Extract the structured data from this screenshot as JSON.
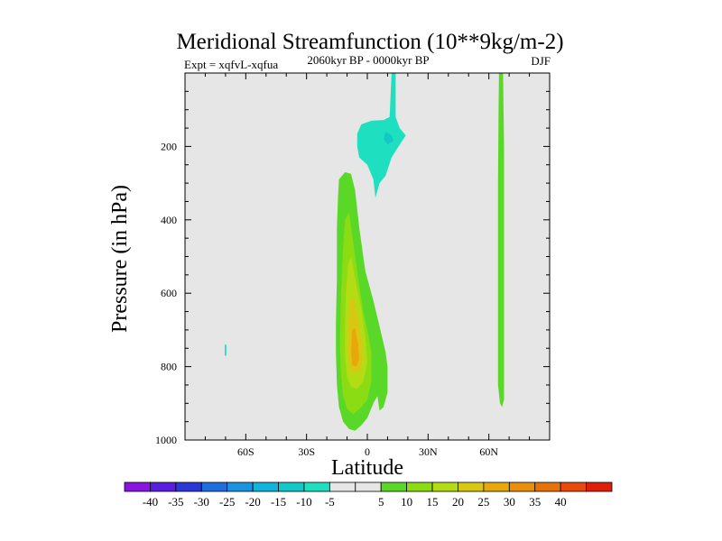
{
  "chart_data": {
    "type": "contour",
    "title": "Meridional Streamfunction (10**9kg/m-2)",
    "subtitle": "2060kyr BP - 0000kyr BP",
    "left_label": "Expt = xqfvL-xqfua",
    "right_label": "DJF",
    "xlabel": "Latitude",
    "ylabel": "Pressure (in hPa)",
    "xlim": [
      -90,
      90
    ],
    "ylim": [
      0,
      1000
    ],
    "y_inverted": true,
    "x_ticks": [
      {
        "value": -60,
        "label": "60S"
      },
      {
        "value": -30,
        "label": "30S"
      },
      {
        "value": 0,
        "label": "0"
      },
      {
        "value": 30,
        "label": "30N"
      },
      {
        "value": 60,
        "label": "60N"
      }
    ],
    "y_ticks": [
      {
        "value": 200,
        "label": "200"
      },
      {
        "value": 400,
        "label": "400"
      },
      {
        "value": 600,
        "label": "600"
      },
      {
        "value": 800,
        "label": "800"
      },
      {
        "value": 1000,
        "label": "1000"
      }
    ],
    "background_color": "#e6e6e6",
    "contour_levels": [
      -45,
      -40,
      -35,
      -30,
      -25,
      -20,
      -15,
      -10,
      -5,
      5,
      10,
      15,
      20,
      25,
      30,
      35,
      40,
      45
    ],
    "colorbar": {
      "colors": [
        "#8a14e0",
        "#5a1ee0",
        "#2a38d8",
        "#1e6ee0",
        "#1a94e0",
        "#10b4dc",
        "#14c8c8",
        "#1ee0c0",
        "#e6e6e6",
        "#e6e6e6",
        "#5ad828",
        "#8cdc14",
        "#b4dc14",
        "#d8c814",
        "#e8a80a",
        "#e8900a",
        "#e8720a",
        "#e84a0a",
        "#e01e0a"
      ],
      "labels": [
        "-40",
        "-35",
        "-30",
        "-25",
        "-20",
        "-15",
        "-10",
        "-5",
        "5",
        "10",
        "15",
        "20",
        "25",
        "30",
        "35",
        "40"
      ]
    },
    "regions": [
      {
        "name": "upper-cyan-cell",
        "level": "-10 to -5",
        "color": "#1ee0c0",
        "polygon": [
          [
            -3,
            140
          ],
          [
            2,
            130
          ],
          [
            8,
            128
          ],
          [
            11,
            120
          ],
          [
            12,
            0
          ],
          [
            14,
            0
          ],
          [
            14,
            120
          ],
          [
            16,
            150
          ],
          [
            19,
            170
          ],
          [
            16,
            195
          ],
          [
            12,
            230
          ],
          [
            9,
            280
          ],
          [
            6,
            300
          ],
          [
            4,
            340
          ],
          [
            3,
            290
          ],
          [
            0,
            250
          ],
          [
            -4,
            230
          ],
          [
            -5,
            200
          ],
          [
            -5,
            165
          ]
        ]
      },
      {
        "name": "upper-cyan-core",
        "level": "-15 to -10",
        "color": "#14c8c8",
        "polygon": [
          [
            9,
            160
          ],
          [
            12,
            170
          ],
          [
            13,
            185
          ],
          [
            10,
            195
          ],
          [
            8,
            180
          ]
        ]
      },
      {
        "name": "tropical-outer-cell",
        "level": "5 to 10",
        "color": "#5ad828",
        "polygon": [
          [
            -14,
            290
          ],
          [
            -11,
            270
          ],
          [
            -8,
            275
          ],
          [
            -6,
            320
          ],
          [
            -4,
            420
          ],
          [
            -1,
            540
          ],
          [
            3,
            620
          ],
          [
            6,
            690
          ],
          [
            9,
            760
          ],
          [
            10,
            800
          ],
          [
            10,
            870
          ],
          [
            8,
            910
          ],
          [
            6,
            920
          ],
          [
            5,
            880
          ],
          [
            3,
            900
          ],
          [
            0,
            940
          ],
          [
            -3,
            960
          ],
          [
            -6,
            975
          ],
          [
            -9,
            970
          ],
          [
            -12,
            950
          ],
          [
            -14,
            910
          ],
          [
            -15,
            850
          ],
          [
            -15.5,
            760
          ],
          [
            -15.5,
            680
          ],
          [
            -15,
            560
          ],
          [
            -15,
            420
          ],
          [
            -14.5,
            340
          ]
        ]
      },
      {
        "name": "tropical-mid-cell",
        "level": "10 to 15",
        "color": "#8cdc14",
        "polygon": [
          [
            -11,
            400
          ],
          [
            -9,
            380
          ],
          [
            -8,
            420
          ],
          [
            -6,
            500
          ],
          [
            -4,
            580
          ],
          [
            -2,
            650
          ],
          [
            0,
            700
          ],
          [
            2,
            760
          ],
          [
            2,
            840
          ],
          [
            0,
            890
          ],
          [
            -3,
            910
          ],
          [
            -7,
            930
          ],
          [
            -10,
            915
          ],
          [
            -12,
            880
          ],
          [
            -13,
            820
          ],
          [
            -13.5,
            740
          ],
          [
            -13,
            600
          ],
          [
            -12,
            480
          ]
        ]
      },
      {
        "name": "tropical-inner-cell",
        "level": "15 to 20",
        "color": "#b4dc14",
        "polygon": [
          [
            -9.5,
            520
          ],
          [
            -8,
            500
          ],
          [
            -6,
            560
          ],
          [
            -3,
            640
          ],
          [
            -1,
            720
          ],
          [
            0,
            790
          ],
          [
            -2,
            840
          ],
          [
            -5,
            860
          ],
          [
            -8,
            855
          ],
          [
            -10,
            830
          ],
          [
            -11,
            770
          ],
          [
            -11,
            680
          ],
          [
            -10.5,
            600
          ]
        ]
      },
      {
        "name": "tropical-core-cell",
        "level": "20 to 25",
        "color": "#d8c814",
        "polygon": [
          [
            -8.5,
            620
          ],
          [
            -6.5,
            610
          ],
          [
            -5,
            660
          ],
          [
            -3,
            720
          ],
          [
            -2,
            780
          ],
          [
            -4,
            810
          ],
          [
            -7,
            820
          ],
          [
            -9,
            800
          ],
          [
            -9.5,
            740
          ],
          [
            -9.3,
            680
          ]
        ]
      },
      {
        "name": "tropical-peak-cell",
        "level": "25 to 30",
        "color": "#e8a80a",
        "polygon": [
          [
            -7.5,
            700
          ],
          [
            -6,
            695
          ],
          [
            -4.5,
            740
          ],
          [
            -4,
            780
          ],
          [
            -5.5,
            800
          ],
          [
            -7.5,
            795
          ],
          [
            -8,
            760
          ]
        ]
      },
      {
        "name": "northern-green-strip",
        "level": "5 to 10",
        "color": "#5ad828",
        "polygon": [
          [
            65,
            0
          ],
          [
            67,
            0
          ],
          [
            67.5,
            200
          ],
          [
            67.5,
            700
          ],
          [
            67.5,
            890
          ],
          [
            66.5,
            910
          ],
          [
            65.5,
            900
          ],
          [
            64.5,
            850
          ],
          [
            64.5,
            600
          ],
          [
            64.5,
            300
          ],
          [
            64.8,
            100
          ]
        ]
      },
      {
        "name": "southern-cyan-mark",
        "level": "-10 to -5",
        "color": "#1ee0c0",
        "polygon": [
          [
            -70.4,
            740
          ],
          [
            -69.6,
            740
          ],
          [
            -69.6,
            770
          ],
          [
            -70.4,
            770
          ]
        ]
      }
    ]
  }
}
